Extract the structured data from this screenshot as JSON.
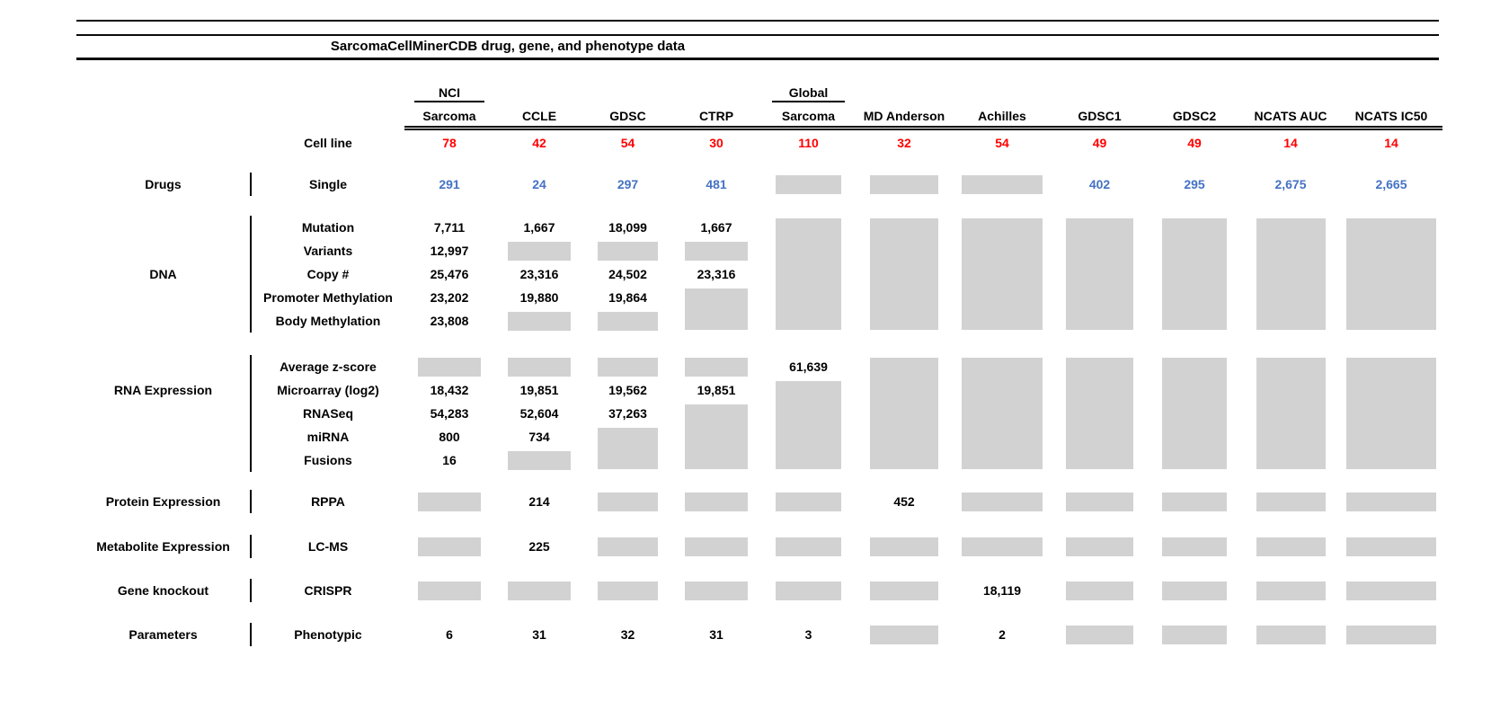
{
  "title": "SarcomaCellMinerCDB drug, gene, and phenotype data",
  "colors": {
    "count_red": "#FF0000",
    "drug_blue": "#4472C4",
    "missing_gray": "#D2D2D2"
  },
  "chart_data": {
    "type": "table",
    "title": "SarcomaCellMinerCDB drug, gene, and phenotype data",
    "cell_token_legend": "BOX = gray no-data box (1 row); BOXn = gray box spanning n rows; - = covered by spanning box above",
    "column_groups": [
      {
        "top": "NCI",
        "label": "Sarcoma"
      },
      {
        "label": "CCLE"
      },
      {
        "label": "GDSC"
      },
      {
        "label": "CTRP"
      },
      {
        "top": "Global",
        "label": "Sarcoma"
      },
      {
        "label": "MD Anderson"
      },
      {
        "label": "Achilles"
      },
      {
        "label": "GDSC1"
      },
      {
        "label": "GDSC2"
      },
      {
        "label": "NCATS AUC"
      },
      {
        "label": "NCATS IC50"
      }
    ],
    "cell_line_row": {
      "label": "Cell line",
      "values": [
        "78",
        "42",
        "54",
        "30",
        "110",
        "32",
        "54",
        "49",
        "49",
        "14",
        "14"
      ]
    },
    "sections": [
      {
        "category": "Drugs",
        "label_row": 1,
        "value_color": "blue",
        "rows": [
          {
            "label": "Single",
            "cells": [
              "291",
              "24",
              "297",
              "481",
              "BOX",
              "BOX",
              "BOX",
              "402",
              "295",
              "2,675",
              "2,665"
            ]
          }
        ]
      },
      {
        "category": "DNA",
        "label_row": 3,
        "rows": [
          {
            "label": "Mutation",
            "cells": [
              "7,711",
              "1,667",
              "18,099",
              "1,667",
              "BOX5",
              "BOX5",
              "BOX5",
              "BOX5",
              "BOX5",
              "BOX5",
              "BOX5"
            ]
          },
          {
            "label": "Variants",
            "cells": [
              "12,997",
              "BOX",
              "BOX",
              "BOX",
              "-",
              "-",
              "-",
              "-",
              "-",
              "-",
              "-"
            ]
          },
          {
            "label": "Copy #",
            "cells": [
              "25,476",
              "23,316",
              "24,502",
              "23,316",
              "-",
              "-",
              "-",
              "-",
              "-",
              "-",
              "-"
            ]
          },
          {
            "label": "Promoter Methylation",
            "cells": [
              "23,202",
              "19,880",
              "19,864",
              "BOX2",
              "-",
              "-",
              "-",
              "-",
              "-",
              "-",
              "-"
            ]
          },
          {
            "label": "Body Methylation",
            "cells": [
              "23,808",
              "BOX",
              "BOX",
              "-",
              "-",
              "-",
              "-",
              "-",
              "-",
              "-",
              "-"
            ]
          }
        ]
      },
      {
        "category": "RNA Expression",
        "label_row": 2,
        "rows": [
          {
            "label": "Average z-score",
            "cells": [
              "BOX",
              "BOX",
              "BOX",
              "BOX",
              "61,639",
              "BOX5",
              "BOX5",
              "BOX5",
              "BOX5",
              "BOX5",
              "BOX5"
            ]
          },
          {
            "label": "Microarray (log2)",
            "cells": [
              "18,432",
              "19,851",
              "19,562",
              "19,851",
              "BOX4",
              "-",
              "-",
              "-",
              "-",
              "-",
              "-"
            ]
          },
          {
            "label": "RNASeq",
            "cells": [
              "54,283",
              "52,604",
              "37,263",
              "BOX3",
              "-",
              "-",
              "-",
              "-",
              "-",
              "-",
              "-"
            ]
          },
          {
            "label": "miRNA",
            "cells": [
              "800",
              "734",
              "BOX2",
              "-",
              "-",
              "-",
              "-",
              "-",
              "-",
              "-",
              "-"
            ]
          },
          {
            "label": "Fusions",
            "cells": [
              "16",
              "BOX",
              "-",
              "-",
              "-",
              "-",
              "-",
              "-",
              "-",
              "-",
              "-"
            ]
          }
        ]
      },
      {
        "category": "Protein Expression",
        "label_row": 1,
        "rows": [
          {
            "label": "RPPA",
            "cells": [
              "BOX",
              "214",
              "BOX",
              "BOX",
              "BOX",
              "452",
              "BOX",
              "BOX",
              "BOX",
              "BOX",
              "BOX"
            ]
          }
        ]
      },
      {
        "category": "Metabolite Expression",
        "label_row": 1,
        "rows": [
          {
            "label": "LC-MS",
            "cells": [
              "BOX",
              "225",
              "BOX",
              "BOX",
              "BOX",
              "BOX",
              "BOX",
              "BOX",
              "BOX",
              "BOX",
              "BOX"
            ]
          }
        ]
      },
      {
        "category": "Gene knockout",
        "label_row": 1,
        "rows": [
          {
            "label": "CRISPR",
            "cells": [
              "BOX",
              "BOX",
              "BOX",
              "BOX",
              "BOX",
              "BOX",
              "18,119",
              "BOX",
              "BOX",
              "BOX",
              "BOX"
            ]
          }
        ]
      },
      {
        "category": "Parameters",
        "label_row": 1,
        "rows": [
          {
            "label": "Phenotypic",
            "cells": [
              "6",
              "31",
              "32",
              "31",
              "3",
              "BOX",
              "2",
              "BOX",
              "BOX",
              "BOX",
              "BOX"
            ]
          }
        ]
      }
    ]
  }
}
